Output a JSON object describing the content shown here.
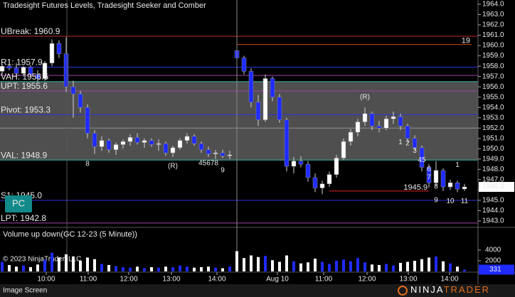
{
  "chart_data": {
    "type": "candlestick",
    "title": "Tradesight Futures Levels, Tradesight Seeker and Comber",
    "up_color": "#ffffff",
    "down_color": "#1f2bff",
    "wick_color": "#d0d0d0",
    "ohlc": [
      [
        1957.5,
        1958.2,
        1957.2,
        1958.0
      ],
      [
        1958.0,
        1958.6,
        1957.6,
        1957.8
      ],
      [
        1957.8,
        1958.3,
        1957.0,
        1957.3
      ],
      [
        1957.3,
        1958.0,
        1957.0,
        1957.9
      ],
      [
        1957.9,
        1958.1,
        1957.0,
        1957.2
      ],
      [
        1957.2,
        1957.6,
        1956.5,
        1956.8
      ],
      [
        1956.8,
        1958.5,
        1956.6,
        1958.3
      ],
      [
        1958.3,
        1960.6,
        1958.0,
        1960.2
      ],
      [
        1960.2,
        1960.5,
        1958.8,
        1959.2
      ],
      [
        1959.2,
        1960.8,
        1955.5,
        1956.0
      ],
      [
        1956.0,
        1956.6,
        1953.0,
        1955.3
      ],
      [
        1955.3,
        1955.6,
        1953.5,
        1954.0
      ],
      [
        1954.0,
        1954.3,
        1951.0,
        1951.5
      ],
      [
        1951.5,
        1951.8,
        1949.5,
        1950.2
      ],
      [
        1950.2,
        1951.2,
        1949.8,
        1950.8
      ],
      [
        1950.8,
        1951.0,
        1949.6,
        1949.9
      ],
      [
        1949.9,
        1950.6,
        1949.4,
        1950.4
      ],
      [
        1950.4,
        1950.9,
        1950.0,
        1950.7
      ],
      [
        1950.7,
        1951.4,
        1950.3,
        1951.1
      ],
      [
        1951.1,
        1951.5,
        1950.4,
        1950.6
      ],
      [
        1950.6,
        1951.0,
        1950.1,
        1950.8
      ],
      [
        1950.8,
        1951.0,
        1950.2,
        1950.4
      ],
      [
        1950.4,
        1950.9,
        1949.8,
        1950.5
      ],
      [
        1950.5,
        1950.7,
        1949.3,
        1949.6
      ],
      [
        1949.6,
        1950.3,
        1949.2,
        1950.1
      ],
      [
        1950.1,
        1951.0,
        1949.9,
        1950.8
      ],
      [
        1950.8,
        1951.5,
        1950.5,
        1951.2
      ],
      [
        1951.2,
        1951.4,
        1950.3,
        1950.5
      ],
      [
        1950.5,
        1950.7,
        1949.6,
        1949.9
      ],
      [
        1949.9,
        1950.2,
        1949.2,
        1949.5
      ],
      [
        1949.5,
        1949.9,
        1949.0,
        1949.6
      ],
      [
        1949.6,
        1949.9,
        1949.1,
        1949.3
      ],
      [
        1949.3,
        1949.8,
        1949.0,
        1949.4
      ],
      [
        1959.5,
        1960.0,
        1958.5,
        1958.8
      ],
      [
        1958.8,
        1959.0,
        1957.2,
        1957.5
      ],
      [
        1957.5,
        1957.8,
        1954.0,
        1954.5
      ],
      [
        1954.5,
        1955.2,
        1952.2,
        1952.8
      ],
      [
        1952.8,
        1957.2,
        1952.6,
        1956.8
      ],
      [
        1956.8,
        1957.0,
        1954.6,
        1955.0
      ],
      [
        1955.0,
        1955.3,
        1952.5,
        1952.8
      ],
      [
        1952.8,
        1953.0,
        1947.8,
        1948.3
      ],
      [
        1948.3,
        1949.2,
        1947.6,
        1948.8
      ],
      [
        1948.8,
        1949.3,
        1948.2,
        1948.5
      ],
      [
        1948.5,
        1948.8,
        1946.8,
        1947.2
      ],
      [
        1947.2,
        1947.6,
        1945.8,
        1946.2
      ],
      [
        1946.2,
        1946.9,
        1945.6,
        1946.6
      ],
      [
        1946.6,
        1947.8,
        1946.3,
        1947.5
      ],
      [
        1947.5,
        1949.4,
        1947.2,
        1949.1
      ],
      [
        1949.1,
        1951.0,
        1948.9,
        1950.7
      ],
      [
        1950.7,
        1951.9,
        1950.3,
        1951.6
      ],
      [
        1951.6,
        1952.9,
        1951.2,
        1952.6
      ],
      [
        1952.6,
        1954.0,
        1952.2,
        1953.4
      ],
      [
        1953.4,
        1953.6,
        1951.8,
        1952.2
      ],
      [
        1952.2,
        1952.7,
        1951.6,
        1952.0
      ],
      [
        1952.0,
        1953.2,
        1951.8,
        1952.9
      ],
      [
        1952.9,
        1953.6,
        1952.4,
        1953.1
      ],
      [
        1953.1,
        1953.4,
        1951.8,
        1952.2
      ],
      [
        1952.2,
        1952.4,
        1950.6,
        1951.0
      ],
      [
        1951.0,
        1951.3,
        1949.8,
        1950.1
      ],
      [
        1950.1,
        1950.3,
        1947.8,
        1948.2
      ],
      [
        1948.2,
        1948.5,
        1946.2,
        1946.7
      ],
      [
        1946.7,
        1948.8,
        1946.4,
        1947.9
      ],
      [
        1947.9,
        1948.1,
        1945.9,
        1946.3
      ],
      [
        1946.3,
        1947.0,
        1946.0,
        1946.7
      ],
      [
        1946.7,
        1946.9,
        1945.8,
        1946.1
      ],
      [
        1946.1,
        1946.6,
        1945.9,
        1946.3
      ]
    ],
    "ylim": [
      1942.38,
      1964.41
    ],
    "yticks": [
      {
        "value": 1964,
        "label": "1964.0"
      },
      {
        "value": 1963,
        "label": "1963.0"
      },
      {
        "value": 1962,
        "label": "1962.0"
      },
      {
        "value": 1961,
        "label": "1961.0"
      },
      {
        "value": 1960,
        "label": "1960.0"
      },
      {
        "value": 1959,
        "label": "1959.0"
      },
      {
        "value": 1958,
        "label": "1958.0"
      },
      {
        "value": 1957,
        "label": "1957.0"
      },
      {
        "value": 1956,
        "label": "1956.0"
      },
      {
        "value": 1955,
        "label": "1955.0"
      },
      {
        "value": 1954,
        "label": "1954.0"
      },
      {
        "value": 1953,
        "label": "1953.0"
      },
      {
        "value": 1952,
        "label": "1952.0"
      },
      {
        "value": 1951,
        "label": "1951.0"
      },
      {
        "value": 1950,
        "label": "1950.0"
      },
      {
        "value": 1949,
        "label": "1949.0"
      },
      {
        "value": 1948,
        "label": "1948.0"
      },
      {
        "value": 1947,
        "label": "1947.0"
      },
      {
        "value": 1946,
        "label": "1946.0"
      },
      {
        "value": 1945,
        "label": "1945.0"
      },
      {
        "value": 1944,
        "label": "1944.0"
      },
      {
        "value": 1943,
        "label": "1943.0"
      }
    ],
    "xticks": [
      {
        "value": 6.2,
        "label": "10:00"
      },
      {
        "value": 12.1,
        "label": "11:00"
      },
      {
        "value": 17.8,
        "label": "12:00"
      },
      {
        "value": 23.8,
        "label": "13:00"
      },
      {
        "value": 30.2,
        "label": "14:00"
      },
      {
        "value": 38.7,
        "label": "Aug 10"
      },
      {
        "value": 45.2,
        "label": "11:00"
      },
      {
        "value": 51.3,
        "label": "12:00"
      },
      {
        "value": 57.1,
        "label": "13:00"
      },
      {
        "value": 62.9,
        "label": "14:00"
      }
    ],
    "levels": [
      {
        "label": "UBreak: 1960.9",
        "value": 1960.9,
        "color": "#c0302a"
      },
      {
        "label": "R1: 1957.9",
        "value": 1957.9,
        "color": "#2a35d8"
      },
      {
        "label": "VAH: 1956.5",
        "value": 1956.5,
        "color": "#3cb4a4"
      },
      {
        "label": "UPT: 1955.6",
        "value": 1955.6,
        "color": "#a040a8"
      },
      {
        "label": "Pivot: 1953.3",
        "value": 1953.3,
        "color": "#2a35d8"
      },
      {
        "label": "VAL: 1948.9",
        "value": 1948.9,
        "color": "#3cb4a4"
      },
      {
        "label": "S1: 1945.0",
        "value": 1945.0,
        "color": "#2a35d8"
      },
      {
        "label": "LPT: 1942.8",
        "value": 1942.8,
        "color": "#a040a8"
      }
    ],
    "extra_lines": [
      {
        "value": 1957.1,
        "color": "#a040a8"
      },
      {
        "value": 1952.0,
        "color": "#909090"
      }
    ],
    "shade": {
      "color": "#6a6a6a",
      "between": [
        2,
        5
      ]
    },
    "short_lines": [
      {
        "label": "1945.9",
        "value": 1945.9,
        "color": "#e02020",
        "from": 46,
        "to": 60
      },
      {
        "label": "19",
        "value": 1960.1,
        "color": "#d04a1a",
        "from": 33,
        "to": 66
      }
    ],
    "annotations": [
      {
        "text": "8",
        "bar": 12,
        "price": 1948.5,
        "color": "#2e9a2e"
      },
      {
        "text": "(R)",
        "bar": 24,
        "price": 1948.3,
        "color": "#d02020"
      },
      {
        "text": "45678",
        "bar": 29,
        "price": 1948.6,
        "color": "#2e9a2e"
      },
      {
        "text": "9",
        "bar": 31,
        "price": 1947.9,
        "color": "#2e9a2e"
      },
      {
        "text": "(R)",
        "bar": 51,
        "price": 1955.0,
        "color": "#d02020"
      },
      {
        "text": "1",
        "bar": 56,
        "price": 1950.6,
        "color": "#2cc8e8"
      },
      {
        "text": "2",
        "bar": 57,
        "price": 1950.5,
        "color": "#2cc8e8"
      },
      {
        "text": "3",
        "bar": 58,
        "price": 1949.8,
        "color": "#2cc8e8"
      },
      {
        "text": "45",
        "bar": 59,
        "price": 1948.9,
        "color": "#2cc8e8"
      },
      {
        "text": "6",
        "bar": 60,
        "price": 1948.0,
        "color": "#2cc8e8"
      },
      {
        "text": "7",
        "bar": 60,
        "price": 1947.2,
        "color": "#2cc8e8"
      },
      {
        "text": "8",
        "bar": 61,
        "price": 1946.3,
        "color": "#2cc8e8"
      },
      {
        "text": "9",
        "bar": 61,
        "price": 1945.0,
        "color": "#2cc8e8"
      },
      {
        "text": "10",
        "bar": 63,
        "price": 1944.9,
        "color": "#2cc8e8"
      },
      {
        "text": "11",
        "bar": 65,
        "price": 1944.9,
        "color": "#2cc8e8"
      },
      {
        "text": "1",
        "bar": 64,
        "price": 1948.4,
        "color": "#2e9a2e"
      }
    ],
    "volume": {
      "title": "Volume up down(GC 12-23 (5 Minute))",
      "up_color": "#1f2bff",
      "down_color": "#ffffff",
      "values": [
        1800,
        1200,
        900,
        1100,
        800,
        1300,
        2200,
        3500,
        2600,
        3200,
        2800,
        2000,
        2600,
        2300,
        1400,
        1200,
        1000,
        800,
        700,
        900,
        600,
        800,
        700,
        900,
        800,
        1100,
        900,
        700,
        800,
        900,
        700,
        600,
        900,
        3800,
        2500,
        3000,
        2700,
        2900,
        2100,
        1800,
        3000,
        1900,
        1500,
        1700,
        2400,
        1800,
        1400,
        2000,
        2200,
        1900,
        2500,
        1700,
        1300,
        1200,
        1400,
        1100,
        1600,
        1800,
        2000,
        2300,
        2600,
        2800,
        1900,
        1500,
        900,
        331
      ],
      "ylim": [
        0,
        8267
      ],
      "yticks": [
        2000,
        4000
      ]
    },
    "button": "PC",
    "copyright": "© 2023 NinjaTrader, LLC",
    "footer": "Image Screen",
    "brand": [
      "NINJA",
      "TRADER"
    ]
  }
}
